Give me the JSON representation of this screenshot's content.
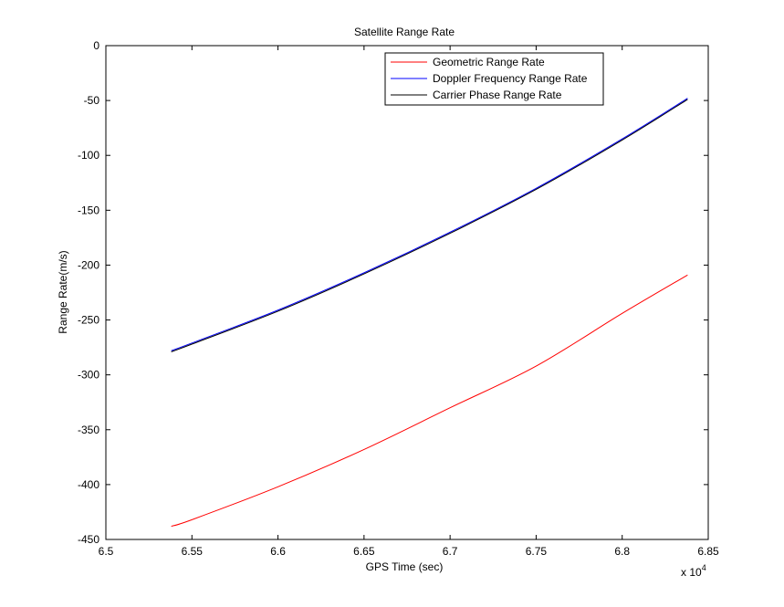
{
  "chart_data": {
    "type": "line",
    "title": "Satellite Range Rate",
    "xlabel": "GPS Time (sec)",
    "ylabel": "Range Rate(m/s)",
    "x_multiplier_label": "x 10",
    "x_multiplier_exponent": "4",
    "xlim": [
      6.5,
      6.85
    ],
    "ylim": [
      -450,
      0
    ],
    "x_ticks": [
      6.5,
      6.55,
      6.6,
      6.65,
      6.7,
      6.75,
      6.8,
      6.85
    ],
    "x_tick_labels": [
      "6.5",
      "6.55",
      "6.6",
      "6.65",
      "6.7",
      "6.75",
      "6.8",
      "6.85"
    ],
    "y_ticks": [
      0,
      -50,
      -100,
      -150,
      -200,
      -250,
      -300,
      -350,
      -400,
      -450
    ],
    "y_tick_labels": [
      "0",
      "-50",
      "-100",
      "-150",
      "-200",
      "-250",
      "-300",
      "-350",
      "-400",
      "-450"
    ],
    "grid": false,
    "legend_position": "top-right",
    "series": [
      {
        "name": "Geometric Range Rate",
        "color": "#ff0000",
        "x": [
          6.538,
          6.55,
          6.6,
          6.65,
          6.7,
          6.75,
          6.8,
          6.838
        ],
        "y": [
          -438,
          -432,
          -402,
          -368,
          -330,
          -292,
          -244,
          -209
        ]
      },
      {
        "name": "Doppler Frequency Range Rate",
        "color": "#0000ff",
        "x": [
          6.538,
          6.55,
          6.6,
          6.65,
          6.7,
          6.75,
          6.8,
          6.838
        ],
        "y": [
          -278,
          -271,
          -241,
          -207,
          -170,
          -130,
          -85,
          -48
        ]
      },
      {
        "name": "Carrier Phase Range Rate",
        "color": "#000000",
        "x": [
          6.538,
          6.55,
          6.6,
          6.65,
          6.7,
          6.75,
          6.8,
          6.838
        ],
        "y": [
          -279,
          -272,
          -242,
          -208,
          -171,
          -131,
          -86,
          -49
        ]
      }
    ]
  }
}
